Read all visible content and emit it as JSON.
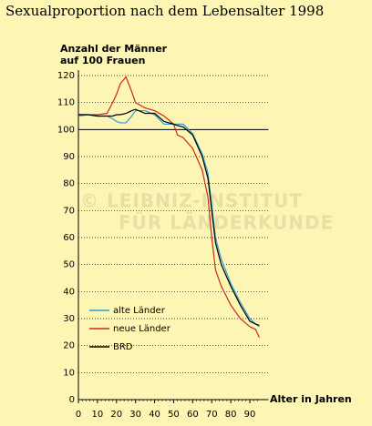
{
  "chart_data": {
    "type": "line",
    "title": "Sexualproportion nach dem Lebensalter 1998",
    "ylabel": [
      "Anzahl der Männer",
      "auf 100 Frauen"
    ],
    "xlabel": "Alter in Jahren",
    "annotations": [
      "© LEIBNIZ-INSTITUT",
      "FÜR LÄNDERKUNDE"
    ],
    "x": [
      0,
      5,
      10,
      15,
      18,
      20,
      22,
      25,
      28,
      30,
      35,
      40,
      45,
      50,
      52,
      55,
      60,
      65,
      68,
      70,
      72,
      75,
      80,
      85,
      90,
      93,
      95
    ],
    "series": [
      {
        "name": "alte Länder",
        "color": "#2a9fd6",
        "values": [
          105,
          105.5,
          105,
          105,
          104,
          103,
          102.5,
          102.5,
          105,
          107,
          107,
          105.5,
          102,
          102,
          102,
          102,
          98.5,
          91,
          84,
          72,
          60,
          52,
          43,
          36,
          30,
          28,
          27
        ]
      },
      {
        "name": "neue Länder",
        "color": "#cc2a1a",
        "values": [
          105.5,
          105.5,
          105.5,
          106,
          110,
          113,
          117,
          119.5,
          114,
          110,
          108,
          107,
          105,
          102,
          98,
          97,
          93,
          85,
          75,
          60,
          48,
          42,
          35,
          30,
          27,
          26,
          23
        ]
      },
      {
        "name": "BRD",
        "color": "#000000",
        "values": [
          105.5,
          105.5,
          105,
          105,
          105,
          105.5,
          105.5,
          106,
          107,
          107.5,
          106,
          106,
          103,
          102,
          101.5,
          101,
          98,
          90,
          82,
          70,
          58,
          50,
          42,
          35,
          29,
          28,
          27.5
        ]
      }
    ],
    "xlim": [
      0,
      95
    ],
    "xticks": [
      0,
      10,
      20,
      30,
      40,
      50,
      60,
      70,
      80,
      90
    ],
    "ylim": [
      0,
      120
    ],
    "yticks": [
      0,
      10,
      20,
      30,
      40,
      50,
      60,
      70,
      80,
      90,
      100,
      110,
      120
    ],
    "reference_line": 100,
    "grid": true
  }
}
